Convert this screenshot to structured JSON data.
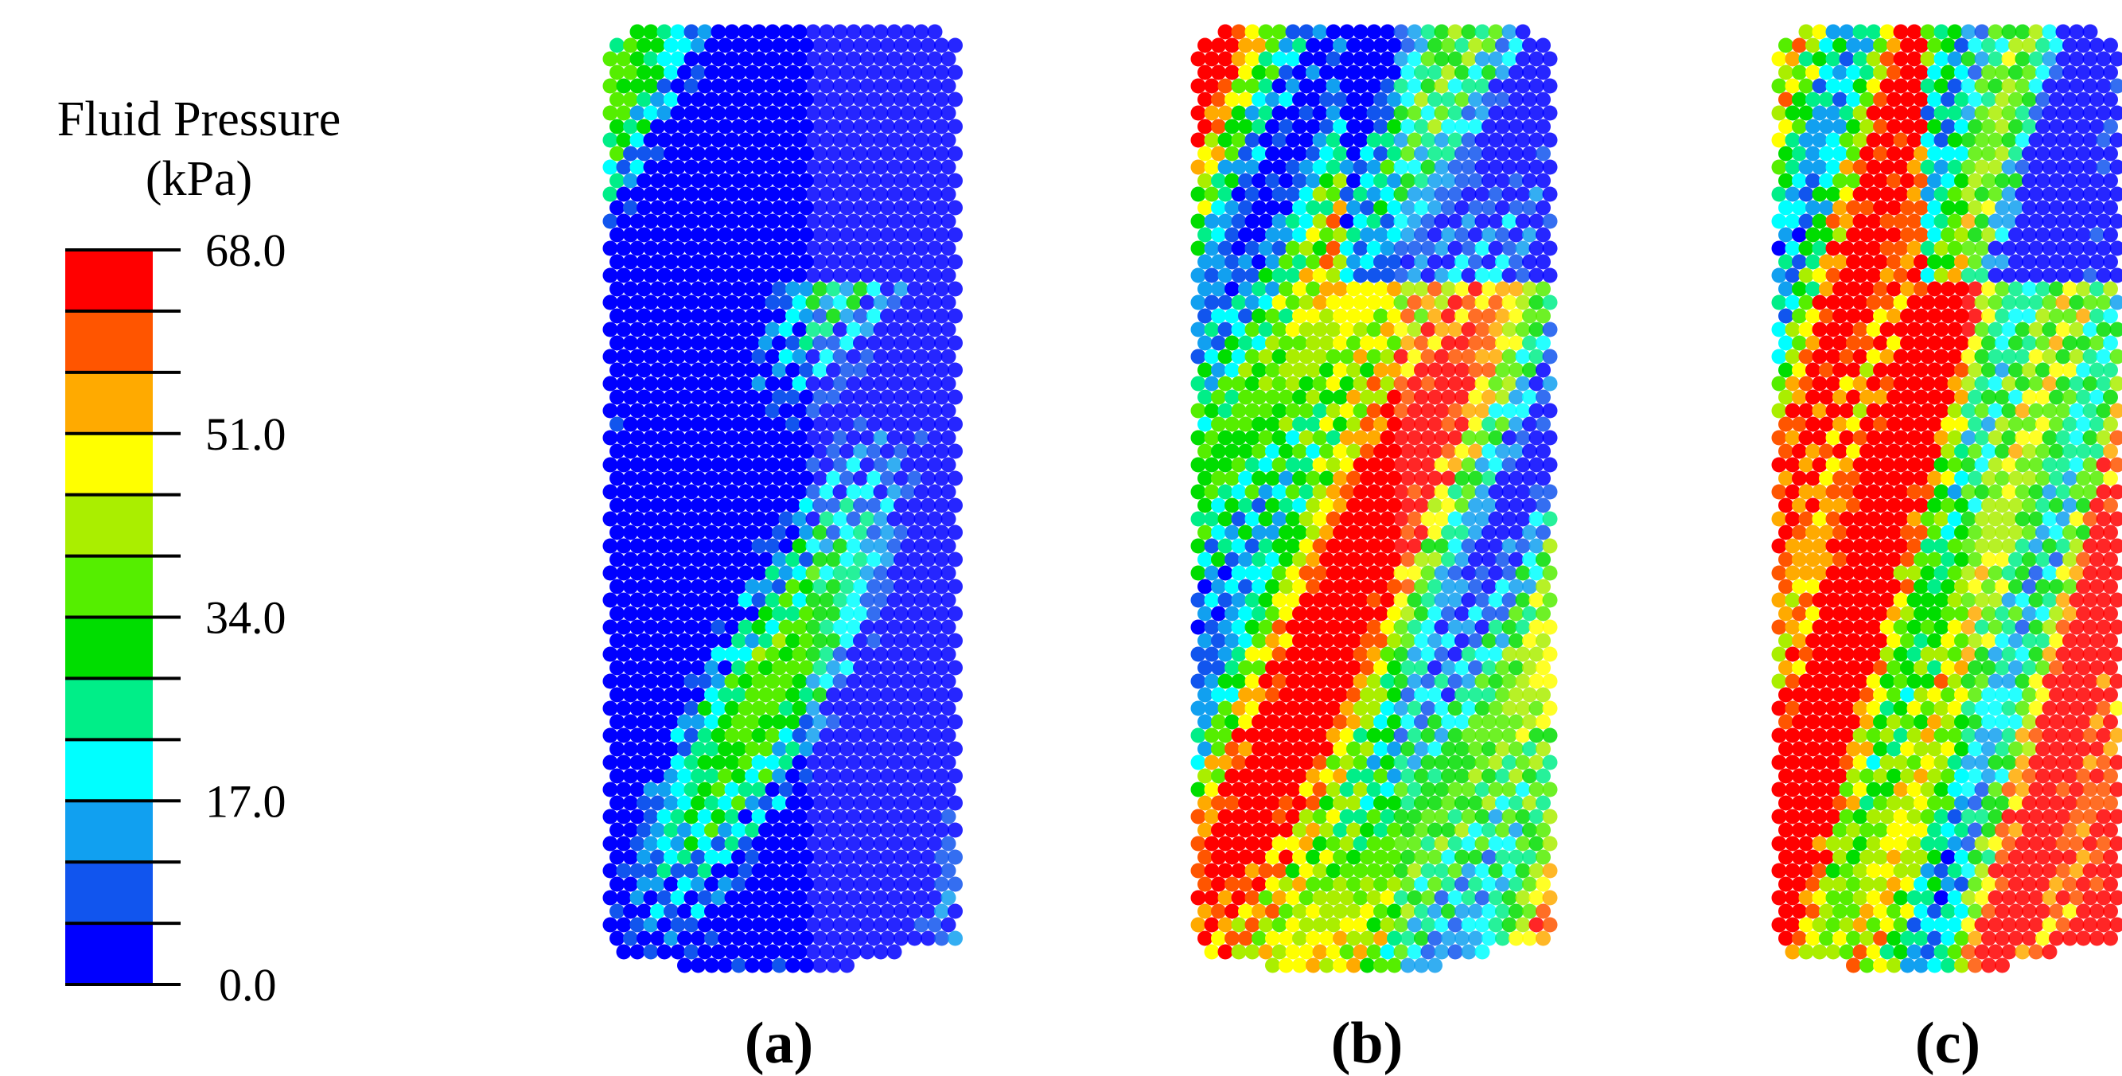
{
  "legend": {
    "title": "Fluid Pressure",
    "unit": "(kPa)",
    "ticks": [
      "68.0",
      "51.0",
      "34.0",
      "17.0",
      "0.0"
    ]
  },
  "panels": [
    {
      "label": "(a)"
    },
    {
      "label": "(b)"
    },
    {
      "label": "(c)"
    }
  ]
}
